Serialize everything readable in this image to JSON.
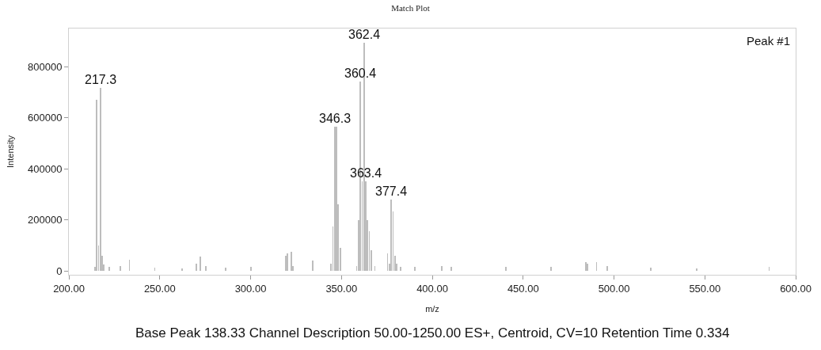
{
  "chart_data": {
    "type": "bar",
    "title": "Match Plot",
    "xlabel": "m/z",
    "ylabel": "Intensity",
    "x": [
      214.3,
      215.3,
      216.3,
      217.3,
      218.3,
      219.3,
      222.3,
      228.3,
      233.3,
      247.3,
      262.3,
      270.3,
      272.3,
      275.3,
      286.3,
      300.3,
      319.3,
      320.3,
      322.3,
      323.3,
      334.3,
      344.3,
      345.3,
      346.3,
      347.3,
      348.3,
      349.3,
      358.4,
      359.4,
      360.4,
      361.4,
      362.4,
      363.4,
      364.4,
      365.4,
      366.4,
      368.4,
      375.4,
      376.4,
      377.4,
      378.4,
      379.4,
      380.4,
      382.4,
      390.4,
      405.4,
      410.4,
      440.4,
      465.4,
      484.4,
      485.4,
      490.4,
      496.4,
      520.4,
      545.4,
      585.4
    ],
    "values": [
      15000,
      672000,
      100000,
      717000,
      60000,
      25000,
      15000,
      20000,
      45000,
      12000,
      10000,
      30000,
      55000,
      20000,
      12000,
      15000,
      60000,
      70000,
      75000,
      20000,
      40000,
      30000,
      175000,
      564000,
      564000,
      260000,
      90000,
      20000,
      200000,
      742000,
      352000,
      895000,
      352000,
      200000,
      155000,
      80000,
      20000,
      70000,
      30000,
      281000,
      234000,
      60000,
      30000,
      15000,
      15000,
      20000,
      15000,
      15000,
      15000,
      35000,
      30000,
      35000,
      20000,
      12000,
      10000,
      15000
    ],
    "color": "#bdbdbd",
    "xlim": [
      200,
      600
    ],
    "ylim": [
      -15000,
      950000
    ],
    "xticks": [
      {
        "value": 200,
        "label": "200.00"
      },
      {
        "value": 250,
        "label": "250.00"
      },
      {
        "value": 300,
        "label": "300.00"
      },
      {
        "value": 350,
        "label": "350.00"
      },
      {
        "value": 400,
        "label": "400.00"
      },
      {
        "value": 450,
        "label": "450.00"
      },
      {
        "value": 500,
        "label": "500.00"
      },
      {
        "value": 550,
        "label": "550.00"
      },
      {
        "value": 600,
        "label": "600.00"
      }
    ],
    "yticks": [
      0,
      200000,
      400000,
      600000,
      800000
    ],
    "annotations": [
      {
        "text": "217.3",
        "x": 217.3,
        "y": 717000
      },
      {
        "text": "346.3",
        "x": 346.3,
        "y": 564000
      },
      {
        "text": "360.4",
        "x": 360.4,
        "y": 742000
      },
      {
        "text": "362.4",
        "x": 362.4,
        "y": 895000
      },
      {
        "text": "363.4",
        "x": 363.4,
        "y": 352000
      },
      {
        "text": "377.4",
        "x": 377.4,
        "y": 281000
      },
      "Peak #1",
      "Base Peak 138.33 Channel Description 50.00-1250.00 ES+, Centroid, CV=10 Retention Time 0.334"
    ]
  }
}
